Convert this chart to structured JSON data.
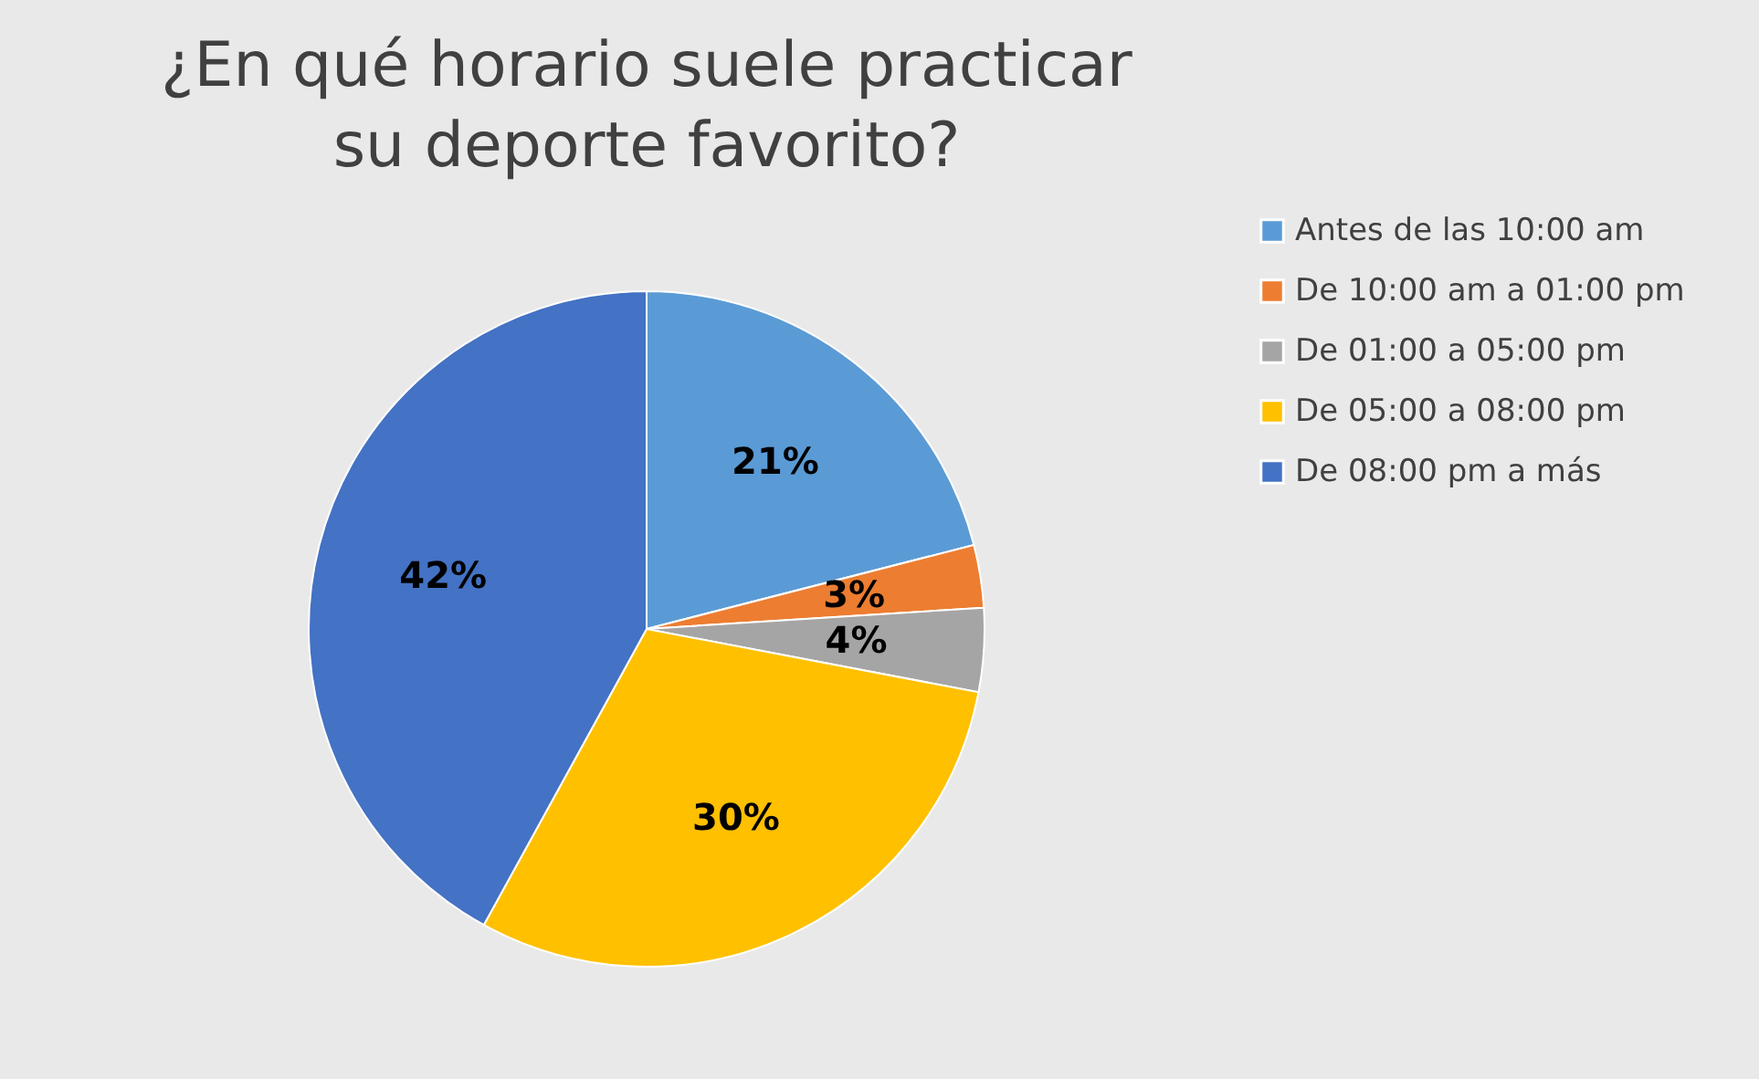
{
  "chart_data": {
    "type": "pie",
    "title": "¿En qué horario suele practicar su deporte favorito?",
    "categories": [
      "Antes de las 10:00 am",
      "De 10:00 am a 01:00 pm",
      "De 01:00 a 05:00 pm",
      "De 05:00 a 08:00 pm",
      "De 08:00 pm a más"
    ],
    "values": [
      21,
      3,
      4,
      30,
      42
    ],
    "colors": [
      "#5b9bd5",
      "#ed7d31",
      "#a5a5a5",
      "#ffc000",
      "#4472c4"
    ],
    "value_labels": [
      "21%",
      "3%",
      "4%",
      "30%",
      "42%"
    ],
    "legend": "right"
  }
}
